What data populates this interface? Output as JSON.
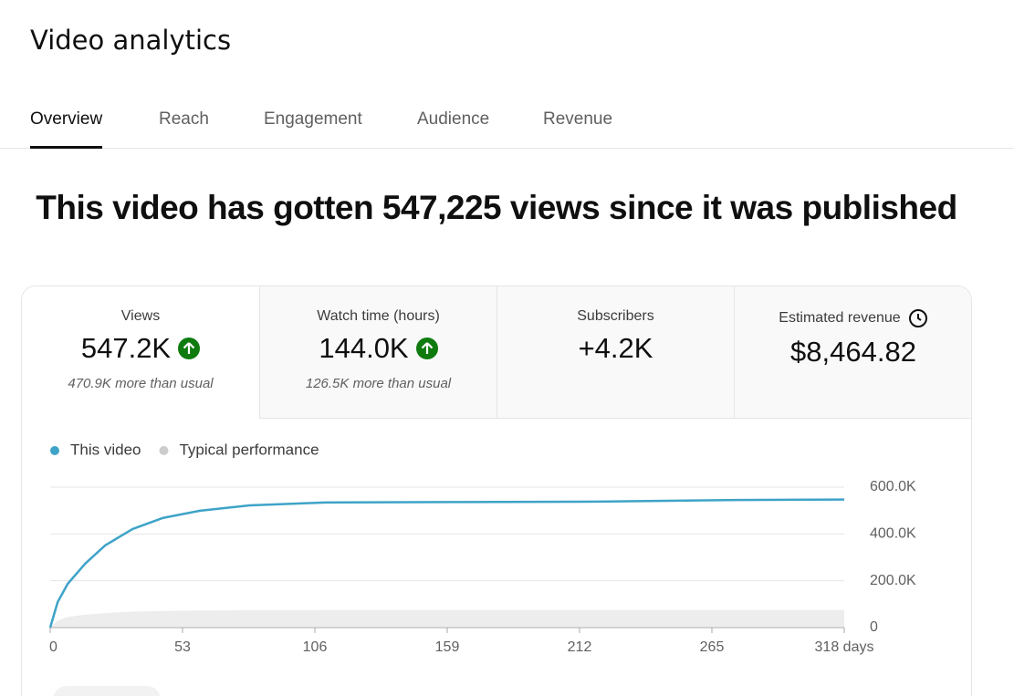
{
  "header": {
    "title": "Video analytics"
  },
  "tabs": [
    "Overview",
    "Reach",
    "Engagement",
    "Audience",
    "Revenue"
  ],
  "headline": "This video has gotten 547,225 views since it was published",
  "metrics": [
    {
      "label": "Views",
      "value": "547.2K",
      "note": "470.9K more than usual"
    },
    {
      "label": "Watch time (hours)",
      "value": "144.0K",
      "note": "126.5K more than usual"
    },
    {
      "label": "Subscribers",
      "value": "+4.2K"
    },
    {
      "label": "Estimated revenue",
      "value": "$8,464.82"
    }
  ],
  "chart_data": {
    "type": "line",
    "x": [
      0,
      3,
      7,
      14,
      22,
      33,
      45,
      60,
      80,
      110,
      160,
      220,
      275,
      318
    ],
    "xlim": [
      0,
      318
    ],
    "xticks": [
      0,
      53,
      106,
      159,
      212,
      265,
      {
        "value": 318,
        "label": "318 days"
      }
    ],
    "ylim": [
      0,
      600000
    ],
    "yticks": [
      {
        "value": 0,
        "label": "0"
      },
      {
        "value": 200000,
        "label": "200.0K"
      },
      {
        "value": 400000,
        "label": "400.0K"
      },
      {
        "value": 600000,
        "label": "600.0K"
      }
    ],
    "grid": true,
    "series": [
      {
        "name": "This video",
        "color": "#3ea3c8",
        "style": "line",
        "values": [
          0,
          109000,
          187000,
          273000,
          351000,
          421000,
          468000,
          499000,
          522000,
          534000,
          536000,
          538000,
          545000,
          547000
        ]
      },
      {
        "name": "Typical performance",
        "color": "#cccccc",
        "style": "area",
        "values": [
          0,
          30000,
          45000,
          55000,
          62000,
          68000,
          71000,
          73000,
          74000,
          75000,
          75000,
          75000,
          75000,
          75000
        ]
      }
    ]
  }
}
